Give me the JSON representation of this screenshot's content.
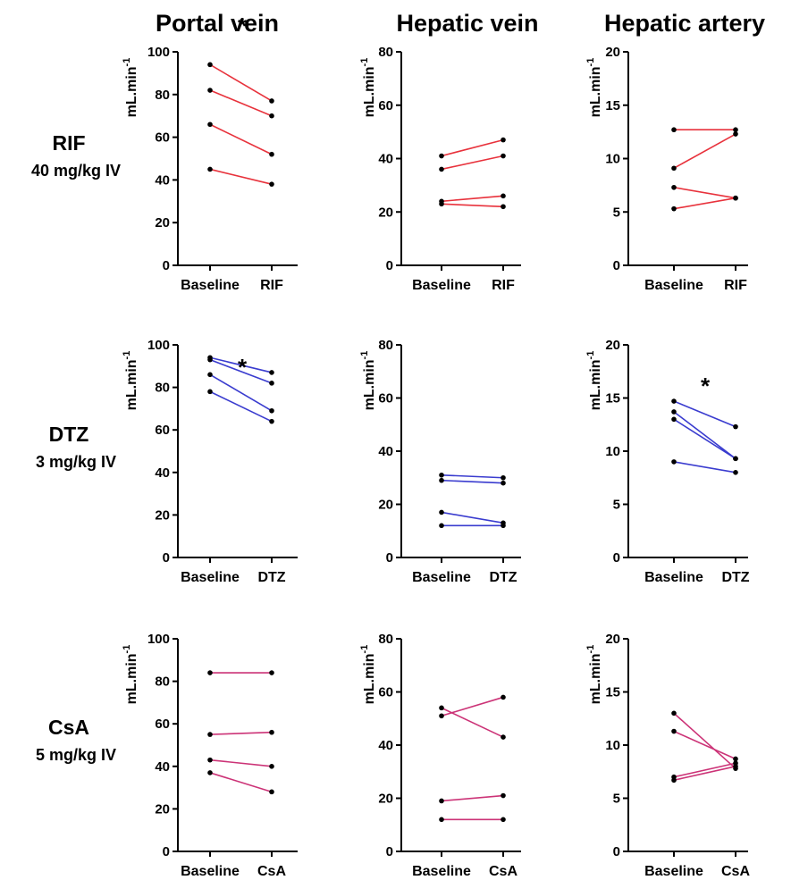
{
  "columns": [
    "Portal vein",
    "Hepatic vein",
    "Hepatic artery"
  ],
  "rows": [
    {
      "drug": "RIF",
      "dose": "40 mg/kg IV",
      "color": "#e8323c"
    },
    {
      "drug": "DTZ",
      "dose": "3 mg/kg IV",
      "color": "#3a3ccf"
    },
    {
      "drug": "CsA",
      "dose": "5 mg/kg IV",
      "color": "#cc3377"
    }
  ],
  "ylabel_main": "mL.min",
  "ylabel_sup": "-1",
  "significance_marker": "*",
  "chart_data": [
    {
      "type": "line",
      "row": "RIF",
      "column": "Portal vein",
      "categories": [
        "Baseline",
        "RIF"
      ],
      "ylim": [
        0,
        100
      ],
      "yticks": [
        0,
        20,
        40,
        60,
        80,
        100
      ],
      "significant": true,
      "series": [
        {
          "values": [
            94,
            77
          ]
        },
        {
          "values": [
            82,
            70
          ]
        },
        {
          "values": [
            66,
            52
          ]
        },
        {
          "values": [
            45,
            38
          ]
        }
      ]
    },
    {
      "type": "line",
      "row": "RIF",
      "column": "Hepatic vein",
      "categories": [
        "Baseline",
        "RIF"
      ],
      "ylim": [
        0,
        80
      ],
      "yticks": [
        0,
        20,
        40,
        60,
        80
      ],
      "significant": false,
      "series": [
        {
          "values": [
            41,
            47
          ]
        },
        {
          "values": [
            36,
            41
          ]
        },
        {
          "values": [
            24,
            26
          ]
        },
        {
          "values": [
            23,
            22
          ]
        }
      ]
    },
    {
      "type": "line",
      "row": "RIF",
      "column": "Hepatic artery",
      "categories": [
        "Baseline",
        "RIF"
      ],
      "ylim": [
        0,
        20
      ],
      "yticks": [
        0,
        5,
        10,
        15,
        20
      ],
      "significant": false,
      "series": [
        {
          "values": [
            12.7,
            12.7
          ]
        },
        {
          "values": [
            9.1,
            12.3
          ]
        },
        {
          "values": [
            7.3,
            6.3
          ]
        },
        {
          "values": [
            5.3,
            6.3
          ]
        }
      ]
    },
    {
      "type": "line",
      "row": "DTZ",
      "column": "Portal vein",
      "categories": [
        "Baseline",
        "DTZ"
      ],
      "ylim": [
        0,
        100
      ],
      "yticks": [
        0,
        20,
        40,
        60,
        80,
        100
      ],
      "significant": true,
      "series": [
        {
          "values": [
            94,
            87
          ]
        },
        {
          "values": [
            93,
            82
          ]
        },
        {
          "values": [
            86,
            69
          ]
        },
        {
          "values": [
            78,
            64
          ]
        }
      ]
    },
    {
      "type": "line",
      "row": "DTZ",
      "column": "Hepatic vein",
      "categories": [
        "Baseline",
        "DTZ"
      ],
      "ylim": [
        0,
        80
      ],
      "yticks": [
        0,
        20,
        40,
        60,
        80
      ],
      "significant": false,
      "series": [
        {
          "values": [
            31,
            30
          ]
        },
        {
          "values": [
            29,
            28
          ]
        },
        {
          "values": [
            17,
            13
          ]
        },
        {
          "values": [
            12,
            12
          ]
        }
      ]
    },
    {
      "type": "line",
      "row": "DTZ",
      "column": "Hepatic artery",
      "categories": [
        "Baseline",
        "DTZ"
      ],
      "ylim": [
        0,
        20
      ],
      "yticks": [
        0,
        5,
        10,
        15,
        20
      ],
      "significant": true,
      "series": [
        {
          "values": [
            14.7,
            12.3
          ]
        },
        {
          "values": [
            13.7,
            9.3
          ]
        },
        {
          "values": [
            13.0,
            9.3
          ]
        },
        {
          "values": [
            9.0,
            8.0
          ]
        }
      ]
    },
    {
      "type": "line",
      "row": "CsA",
      "column": "Portal vein",
      "categories": [
        "Baseline",
        "CsA"
      ],
      "ylim": [
        0,
        100
      ],
      "yticks": [
        0,
        20,
        40,
        60,
        80,
        100
      ],
      "significant": false,
      "series": [
        {
          "values": [
            84,
            84
          ]
        },
        {
          "values": [
            55,
            56
          ]
        },
        {
          "values": [
            43,
            40
          ]
        },
        {
          "values": [
            37,
            28
          ]
        }
      ]
    },
    {
      "type": "line",
      "row": "CsA",
      "column": "Hepatic vein",
      "categories": [
        "Baseline",
        "CsA"
      ],
      "ylim": [
        0,
        80
      ],
      "yticks": [
        0,
        20,
        40,
        60,
        80
      ],
      "significant": false,
      "series": [
        {
          "values": [
            54,
            43
          ]
        },
        {
          "values": [
            51,
            58
          ]
        },
        {
          "values": [
            19,
            21
          ]
        },
        {
          "values": [
            12,
            12
          ]
        }
      ]
    },
    {
      "type": "line",
      "row": "CsA",
      "column": "Hepatic artery",
      "categories": [
        "Baseline",
        "CsA"
      ],
      "ylim": [
        0,
        20
      ],
      "yticks": [
        0,
        5,
        10,
        15,
        20
      ],
      "significant": false,
      "series": [
        {
          "values": [
            13.0,
            7.8
          ]
        },
        {
          "values": [
            11.3,
            8.7
          ]
        },
        {
          "values": [
            7.0,
            8.3
          ]
        },
        {
          "values": [
            6.7,
            8.0
          ]
        }
      ]
    }
  ]
}
